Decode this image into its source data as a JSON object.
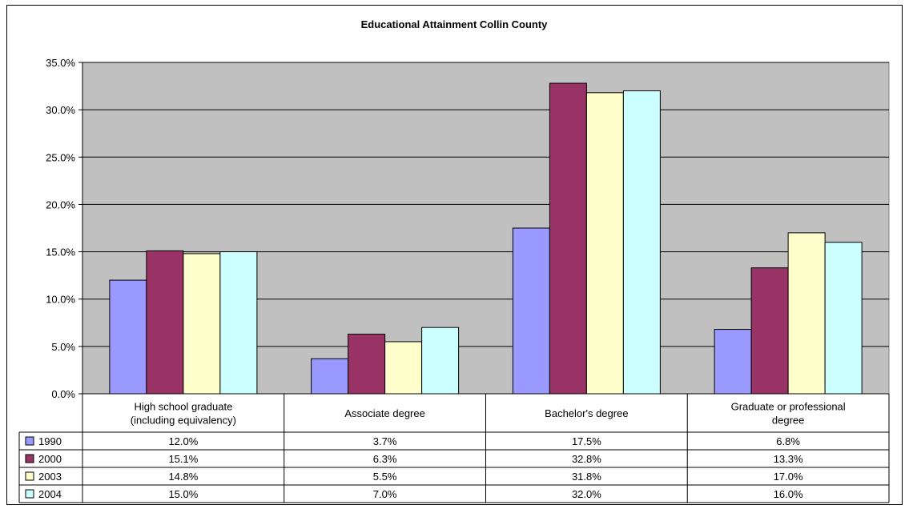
{
  "chart_data": {
    "type": "bar",
    "title": "Educational Attainment Collin County",
    "categories": [
      [
        "High school graduate",
        "(including equivalency)"
      ],
      [
        "Associate degree"
      ],
      [
        "Bachelor's degree"
      ],
      [
        "Graduate or professional",
        "degree"
      ]
    ],
    "ylim": [
      0,
      35
    ],
    "yticks": [
      "0.0%",
      "5.0%",
      "10.0%",
      "15.0%",
      "20.0%",
      "25.0%",
      "30.0%",
      "35.0%"
    ],
    "grid": true,
    "plot_background": "#c0c0c0",
    "series": [
      {
        "name": "1990",
        "color": "#9999ff",
        "values": [
          12.0,
          3.7,
          17.5,
          6.8
        ],
        "labels": [
          "12.0%",
          "3.7%",
          "17.5%",
          "6.8%"
        ]
      },
      {
        "name": "2000",
        "color": "#993366",
        "values": [
          15.1,
          6.3,
          32.8,
          13.3
        ],
        "labels": [
          "15.1%",
          "6.3%",
          "32.8%",
          "13.3%"
        ]
      },
      {
        "name": "2003",
        "color": "#ffffcc",
        "values": [
          14.8,
          5.5,
          31.8,
          17.0
        ],
        "labels": [
          "14.8%",
          "5.5%",
          "31.8%",
          "17.0%"
        ]
      },
      {
        "name": "2004",
        "color": "#ccffff",
        "values": [
          15.0,
          7.0,
          32.0,
          16.0
        ],
        "labels": [
          "15.0%",
          "7.0%",
          "32.0%",
          "16.0%"
        ]
      }
    ],
    "legend": "data-table-rows"
  }
}
